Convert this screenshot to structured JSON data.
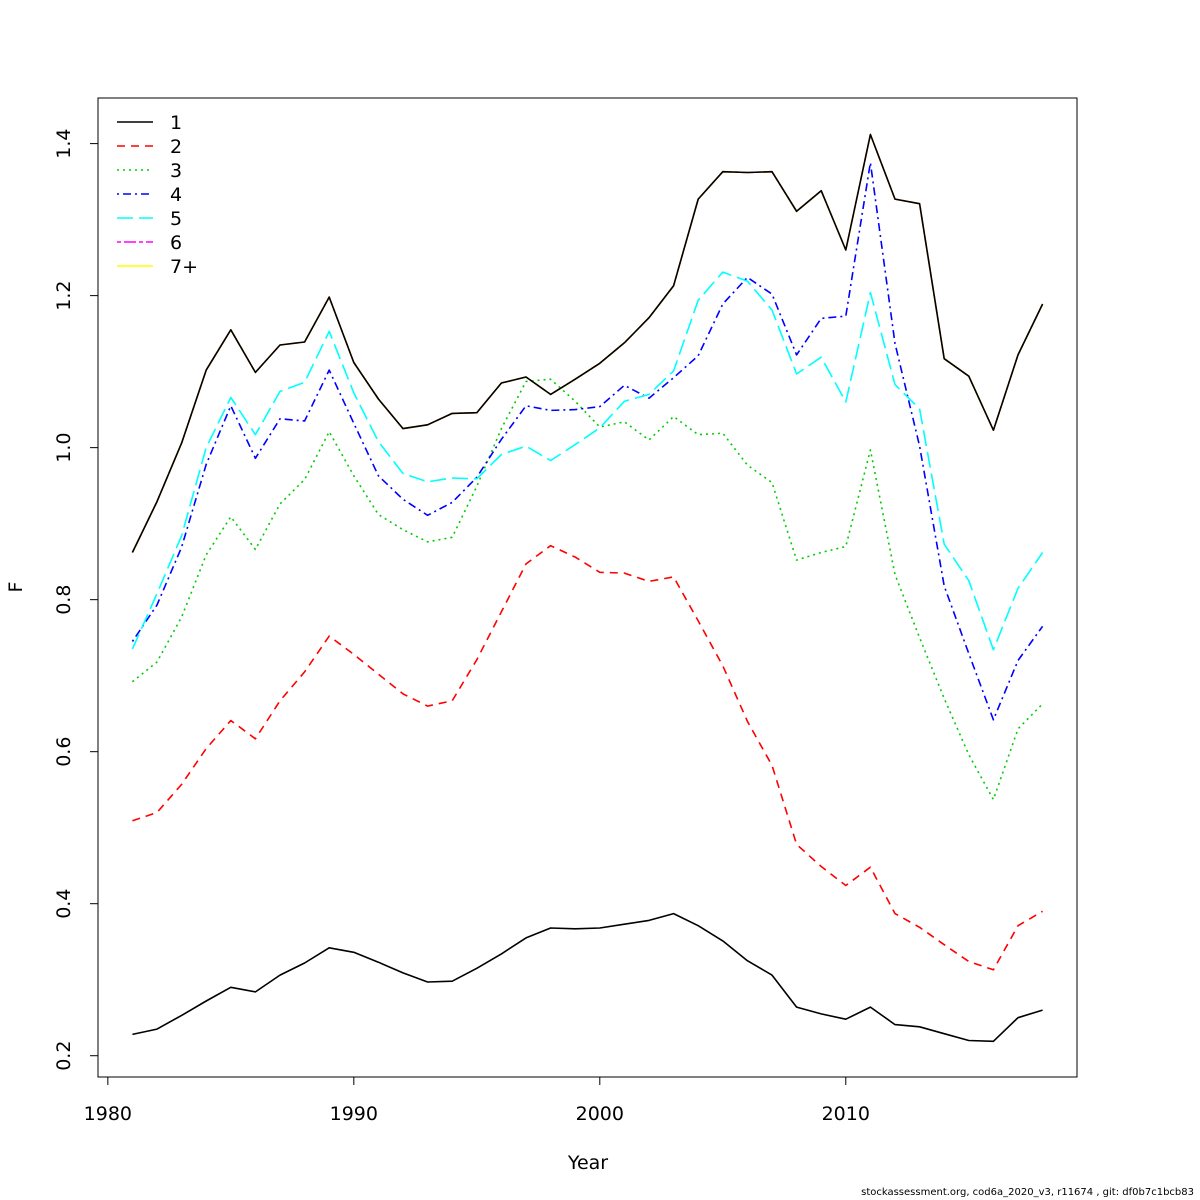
{
  "chart_data": {
    "type": "line",
    "title": "",
    "xlabel": "Year",
    "ylabel": "F",
    "xlim": [
      1979.6,
      2019.4
    ],
    "ylim": [
      0.172,
      1.46
    ],
    "xticks": [
      1980,
      1990,
      2000,
      2010
    ],
    "yticks": [
      0.2,
      0.4,
      0.6,
      0.8,
      1.0,
      1.2,
      1.4
    ],
    "ytick_labels": [
      "0.2",
      "0.4",
      "0.6",
      "0.8",
      "1.0",
      "1.2",
      "1.4"
    ],
    "legend_position": "top-left",
    "grid": false,
    "x": [
      1981,
      1982,
      1983,
      1984,
      1985,
      1986,
      1987,
      1988,
      1989,
      1990,
      1991,
      1992,
      1993,
      1994,
      1995,
      1996,
      1997,
      1998,
      1999,
      2000,
      2001,
      2002,
      2003,
      2004,
      2005,
      2006,
      2007,
      2008,
      2009,
      2010,
      2011,
      2012,
      2013,
      2014,
      2015,
      2016,
      2017,
      2018
    ],
    "series": [
      {
        "name": "1",
        "color": "#000000",
        "dash": "solid",
        "values": [
          0.228,
          0.235,
          0.253,
          0.272,
          0.29,
          0.284,
          0.306,
          0.322,
          0.342,
          0.336,
          0.323,
          0.309,
          0.297,
          0.298,
          0.315,
          0.334,
          0.355,
          0.368,
          0.367,
          0.368,
          0.373,
          0.378,
          0.387,
          0.371,
          0.351,
          0.325,
          0.306,
          0.264,
          0.255,
          0.248,
          0.264,
          0.241,
          0.238,
          0.229,
          0.22,
          0.219,
          0.25,
          0.26
        ]
      },
      {
        "name": "2",
        "color": "#ff0000",
        "dash": "dashed",
        "values": [
          0.509,
          0.52,
          0.557,
          0.604,
          0.641,
          0.617,
          0.667,
          0.705,
          0.752,
          0.728,
          0.702,
          0.676,
          0.66,
          0.667,
          0.721,
          0.784,
          0.847,
          0.871,
          0.856,
          0.836,
          0.835,
          0.824,
          0.83,
          0.772,
          0.713,
          0.64,
          0.582,
          0.478,
          0.449,
          0.424,
          0.448,
          0.387,
          0.369,
          0.346,
          0.324,
          0.313,
          0.371,
          0.39
        ]
      },
      {
        "name": "3",
        "color": "#00cd00",
        "dash": "dotted",
        "values": [
          0.692,
          0.718,
          0.777,
          0.859,
          0.909,
          0.866,
          0.926,
          0.958,
          1.021,
          0.963,
          0.912,
          0.892,
          0.876,
          0.882,
          0.949,
          1.025,
          1.087,
          1.09,
          1.061,
          1.027,
          1.034,
          1.01,
          1.041,
          1.017,
          1.019,
          0.977,
          0.954,
          0.852,
          0.862,
          0.87,
          0.997,
          0.833,
          0.75,
          0.67,
          0.596,
          0.537,
          0.63,
          0.663
        ]
      },
      {
        "name": "4",
        "color": "#0000ff",
        "dash": "dotdash",
        "values": [
          0.745,
          0.793,
          0.869,
          0.978,
          1.055,
          0.986,
          1.038,
          1.035,
          1.102,
          1.032,
          0.963,
          0.932,
          0.911,
          0.928,
          0.961,
          1.011,
          1.055,
          1.049,
          1.05,
          1.054,
          1.082,
          1.065,
          1.092,
          1.121,
          1.189,
          1.224,
          1.202,
          1.122,
          1.17,
          1.173,
          1.375,
          1.137,
          1.002,
          0.818,
          0.729,
          0.642,
          0.72,
          0.765
        ]
      },
      {
        "name": "5",
        "color": "#00ffff",
        "dash": "longdash",
        "values": [
          0.735,
          0.808,
          0.884,
          1.0,
          1.066,
          1.017,
          1.074,
          1.086,
          1.153,
          1.072,
          1.008,
          0.966,
          0.955,
          0.96,
          0.959,
          0.991,
          1.002,
          0.983,
          1.004,
          1.026,
          1.061,
          1.07,
          1.101,
          1.194,
          1.231,
          1.219,
          1.181,
          1.097,
          1.119,
          1.06,
          1.204,
          1.083,
          1.051,
          0.873,
          0.825,
          0.734,
          0.815,
          0.862
        ]
      },
      {
        "name": "6",
        "color": "#ff00ff",
        "dash": "twodash",
        "values": [
          0.862,
          0.929,
          1.006,
          1.102,
          1.155,
          1.099,
          1.135,
          1.139,
          1.198,
          1.112,
          1.064,
          1.025,
          1.03,
          1.045,
          1.046,
          1.085,
          1.093,
          1.07,
          1.09,
          1.111,
          1.138,
          1.171,
          1.213,
          1.327,
          1.363,
          1.362,
          1.363,
          1.311,
          1.338,
          1.26,
          1.412,
          1.327,
          1.321,
          1.117,
          1.094,
          1.023,
          1.122,
          1.189
        ]
      },
      {
        "name": "7+",
        "color": "#ffff00",
        "dash": "solid",
        "values": [
          0.862,
          0.929,
          1.006,
          1.102,
          1.155,
          1.099,
          1.135,
          1.139,
          1.198,
          1.112,
          1.064,
          1.025,
          1.03,
          1.045,
          1.046,
          1.085,
          1.093,
          1.07,
          1.09,
          1.111,
          1.138,
          1.171,
          1.213,
          1.327,
          1.363,
          1.362,
          1.363,
          1.311,
          1.338,
          1.26,
          1.412,
          1.327,
          1.321,
          1.117,
          1.094,
          1.023,
          1.122,
          1.189
        ]
      },
      {
        "name": "",
        "color": "#000000",
        "dash": "solid",
        "legend": false,
        "values": [
          0.862,
          0.929,
          1.006,
          1.102,
          1.155,
          1.099,
          1.135,
          1.139,
          1.198,
          1.112,
          1.064,
          1.025,
          1.03,
          1.045,
          1.046,
          1.085,
          1.093,
          1.07,
          1.09,
          1.111,
          1.138,
          1.171,
          1.213,
          1.327,
          1.363,
          1.362,
          1.363,
          1.311,
          1.338,
          1.26,
          1.412,
          1.327,
          1.321,
          1.117,
          1.094,
          1.023,
          1.122,
          1.189
        ]
      }
    ]
  },
  "footer": "stockassessment.org, cod6a_2020_v3, r11674 , git: df0b7c1bcb83"
}
